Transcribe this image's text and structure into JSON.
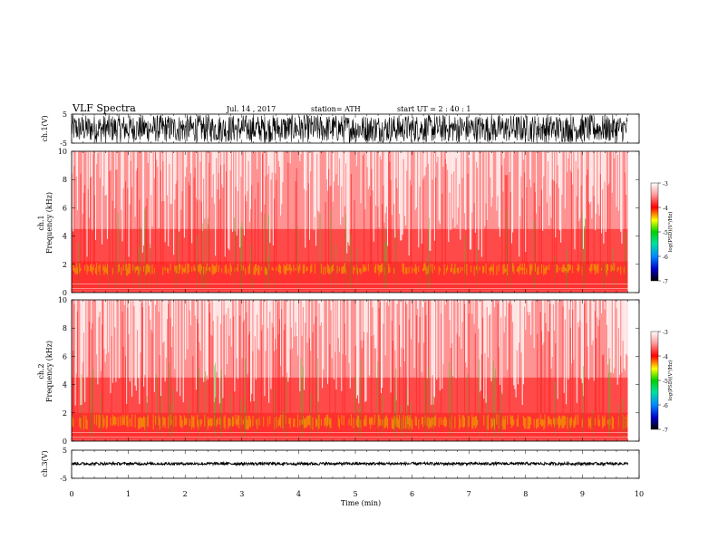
{
  "header": {
    "title": "VLF  Spectra",
    "date": "Jul.  14 ,  2017",
    "station": "station= ATH",
    "start": "start  UT  =    2  : 40 : 1"
  },
  "chart_data": [
    {
      "type": "line",
      "name": "ch1-waveform",
      "ylabel": "ch.1(V)",
      "ylim": [
        -5,
        5
      ],
      "yticks": [
        "5",
        "-5"
      ],
      "xlim": [
        0,
        10
      ],
      "data_end_min": 9.8,
      "amplitude_range": [
        -4.8,
        4.8
      ],
      "color": "#000000"
    },
    {
      "type": "heatmap",
      "name": "ch1-spectrogram",
      "ylabel": "ch.1\nFrequency  (kHz)",
      "ylabel_lines": [
        "ch.1",
        "Frequency  (kHz)"
      ],
      "ylim": [
        0,
        10
      ],
      "yticks": [
        "0",
        "2",
        "4",
        "6",
        "8",
        "10"
      ],
      "xlim": [
        0,
        10
      ],
      "data_end_min": 9.8,
      "colorbar": {
        "label": "log(PSD)(V²/Hz)",
        "range": [
          -7,
          -3
        ],
        "ticks": [
          "-3",
          "-4",
          "-5",
          "-6",
          "-7"
        ]
      },
      "band_kHz": [
        [
          0,
          2.2
        ],
        [
          1.2,
          2.1
        ]
      ]
    },
    {
      "type": "heatmap",
      "name": "ch2-spectrogram",
      "ylabel": "ch.2\nFrequency  (kHz)",
      "ylabel_lines": [
        "ch.2",
        "Frequency  (kHz)"
      ],
      "ylim": [
        0,
        10
      ],
      "yticks": [
        "0",
        "2",
        "4",
        "6",
        "8",
        "10"
      ],
      "xlim": [
        0,
        10
      ],
      "data_end_min": 9.8,
      "colorbar": {
        "label": "log(PSD)(V²/Hz)",
        "range": [
          -7,
          -3
        ],
        "ticks": [
          "-3",
          "-4",
          "-5",
          "-6",
          "-7"
        ]
      },
      "band_kHz": [
        [
          0,
          2.0
        ],
        [
          0.8,
          1.9
        ]
      ]
    },
    {
      "type": "line",
      "name": "ch3-waveform",
      "ylabel": "ch.3(V)",
      "ylim": [
        -5,
        5
      ],
      "yticks": [
        "5",
        "-5"
      ],
      "xlim": [
        0,
        10
      ],
      "data_end_min": 9.8,
      "baseline_V": 0.2,
      "amplitude_range": [
        -0.5,
        0.5
      ],
      "color": "#000000"
    }
  ],
  "x_axis": {
    "label": "Time  (min)",
    "ticks": [
      "0",
      "1",
      "2",
      "3",
      "4",
      "5",
      "6",
      "7",
      "8",
      "9",
      "10"
    ]
  }
}
